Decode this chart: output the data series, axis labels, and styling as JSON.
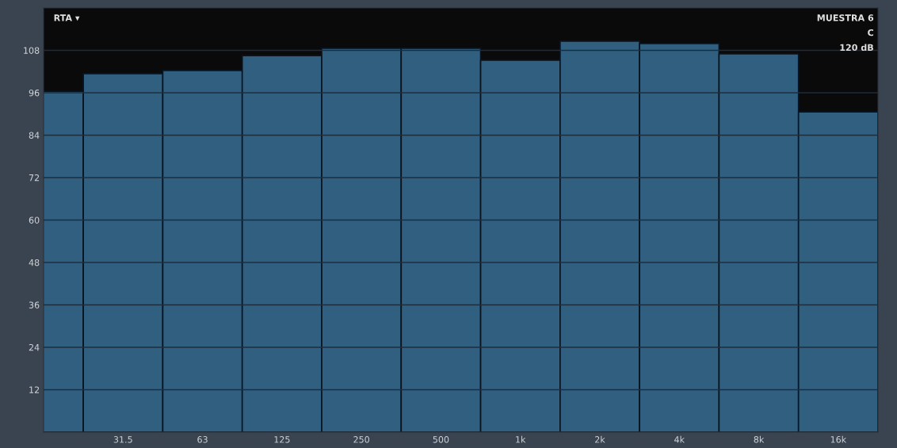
{
  "chart_data": {
    "type": "bar",
    "categories": [
      null,
      "31.5",
      "63",
      "125",
      "250",
      "500",
      "1k",
      "2k",
      "4k",
      "8k",
      "16k"
    ],
    "values": [
      96.4,
      101.4,
      102.3,
      106.5,
      108.6,
      108.6,
      105.2,
      110.6,
      109.9,
      107.0,
      90.6
    ],
    "color": "#305f80",
    "ylim": [
      0,
      120
    ],
    "yticks": [
      12,
      24,
      36,
      48,
      60,
      72,
      84,
      96,
      108
    ],
    "grid": "y",
    "annotations": [
      "RTA ▾",
      "MUESTRA 6",
      "C",
      "120 dB"
    ]
  }
}
